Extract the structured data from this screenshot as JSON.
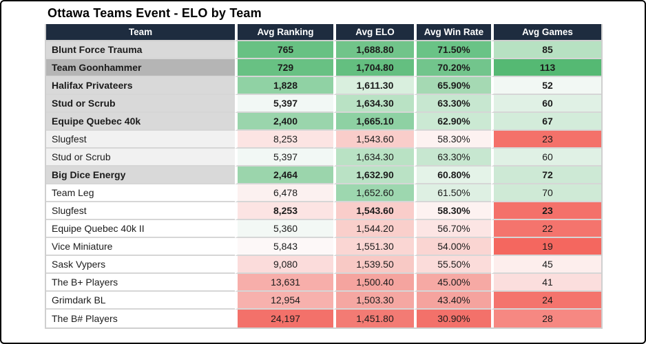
{
  "title": "Ottawa Teams Event - ELO by Team",
  "colors": {
    "header_bg": "#1e2c3f",
    "header_text": "#ffffff",
    "grid_line": "#d6d6d6",
    "outer_border": "#000000",
    "scale_green_strong": "#55b973",
    "scale_red_strong": "#f4675f"
  },
  "table": {
    "columns": [
      "Team",
      "Avg Ranking",
      "Avg ELO",
      "Avg Win Rate",
      "Avg Games"
    ],
    "rows": [
      {
        "team": "Blunt Force Trauma",
        "name_bold": true,
        "values_bold": true,
        "team_bg": "#d9d9d9",
        "cells": [
          {
            "text": "765",
            "bg": "#68c183"
          },
          {
            "text": "1,688.80",
            "bg": "#71c48a"
          },
          {
            "text": "71.50%",
            "bg": "#6ac386"
          },
          {
            "text": "85",
            "bg": "#b7e1c2"
          }
        ]
      },
      {
        "team": "Team Goonhammer",
        "name_bold": true,
        "values_bold": true,
        "team_bg": "#b5b5b5",
        "cells": [
          {
            "text": "729",
            "bg": "#68c183"
          },
          {
            "text": "1,704.80",
            "bg": "#64bf80"
          },
          {
            "text": "70.20%",
            "bg": "#72c58c"
          },
          {
            "text": "113",
            "bg": "#55b973"
          }
        ]
      },
      {
        "team": "Halifax Privateers",
        "name_bold": true,
        "values_bold": true,
        "team_bg": "#d9d9d9",
        "cells": [
          {
            "text": "1,828",
            "bg": "#90d2a4"
          },
          {
            "text": "1,611.30",
            "bg": "#d9efde"
          },
          {
            "text": "65.90%",
            "bg": "#a5d9b3"
          },
          {
            "text": "52",
            "bg": "#f2f8f4"
          }
        ]
      },
      {
        "team": "Stud or Scrub",
        "name_bold": true,
        "values_bold": true,
        "team_bg": "#d9d9d9",
        "cells": [
          {
            "text": "5,397",
            "bg": "#f2f8f5"
          },
          {
            "text": "1,634.30",
            "bg": "#b9e2c4"
          },
          {
            "text": "63.30%",
            "bg": "#c7e7d0"
          },
          {
            "text": "60",
            "bg": "#e0f1e5"
          }
        ]
      },
      {
        "team": "Equipe Quebec 40k",
        "name_bold": true,
        "values_bold": true,
        "team_bg": "#d9d9d9",
        "cells": [
          {
            "text": "2,400",
            "bg": "#9ad5ac"
          },
          {
            "text": "1,665.10",
            "bg": "#8ed1a3"
          },
          {
            "text": "62.90%",
            "bg": "#cbe9d3"
          },
          {
            "text": "67",
            "bg": "#d3ecda"
          }
        ]
      },
      {
        "team": "Slugfest",
        "name_bold": false,
        "values_bold": false,
        "team_bg": "#f1f1f1",
        "cells": [
          {
            "text": "8,253",
            "bg": "#fce4e3"
          },
          {
            "text": "1,543.60",
            "bg": "#f9cdca"
          },
          {
            "text": "58.30%",
            "bg": "#fdf2f1"
          },
          {
            "text": "23",
            "bg": "#f4716a"
          }
        ]
      },
      {
        "team": "Stud or Scrub",
        "name_bold": false,
        "values_bold": false,
        "team_bg": "#f1f1f1",
        "cells": [
          {
            "text": "5,397",
            "bg": "#f2f8f5"
          },
          {
            "text": "1,634.30",
            "bg": "#b9e2c4"
          },
          {
            "text": "63.30%",
            "bg": "#c7e7d0"
          },
          {
            "text": "60",
            "bg": "#e0f1e5"
          }
        ]
      },
      {
        "team": "Big Dice Energy",
        "name_bold": true,
        "values_bold": true,
        "team_bg": "#d9d9d9",
        "cells": [
          {
            "text": "2,464",
            "bg": "#9bd5ac"
          },
          {
            "text": "1,632.90",
            "bg": "#bae2c5"
          },
          {
            "text": "60.80%",
            "bg": "#e4f3e8"
          },
          {
            "text": "72",
            "bg": "#cde9d5"
          }
        ]
      },
      {
        "team": "Team Leg",
        "name_bold": false,
        "values_bold": false,
        "team_bg": "#ffffff",
        "cells": [
          {
            "text": "6,478",
            "bg": "#fcf1f0"
          },
          {
            "text": "1,652.60",
            "bg": "#9dd7af"
          },
          {
            "text": "61.50%",
            "bg": "#def0e3"
          },
          {
            "text": "70",
            "bg": "#cfead6"
          }
        ]
      },
      {
        "team": "Slugfest",
        "name_bold": false,
        "values_bold": true,
        "team_bg": "#ffffff",
        "cells": [
          {
            "text": "8,253",
            "bg": "#fce4e3"
          },
          {
            "text": "1,543.60",
            "bg": "#f9cdca"
          },
          {
            "text": "58.30%",
            "bg": "#fdf2f1"
          },
          {
            "text": "23",
            "bg": "#f4716a"
          }
        ]
      },
      {
        "team": "Equipe Quebec 40k II",
        "name_bold": false,
        "values_bold": false,
        "team_bg": "#ffffff",
        "cells": [
          {
            "text": "5,360",
            "bg": "#f3f8f5"
          },
          {
            "text": "1,544.20",
            "bg": "#f9cfcb"
          },
          {
            "text": "56.70%",
            "bg": "#fce5e4"
          },
          {
            "text": "22",
            "bg": "#f4746d"
          }
        ]
      },
      {
        "team": "Vice Miniature",
        "name_bold": false,
        "values_bold": false,
        "team_bg": "#ffffff",
        "cells": [
          {
            "text": "5,843",
            "bg": "#fdf8f8"
          },
          {
            "text": "1,551.30",
            "bg": "#fad6d3"
          },
          {
            "text": "54.00%",
            "bg": "#fad5d2"
          },
          {
            "text": "19",
            "bg": "#f4675f"
          }
        ]
      },
      {
        "team": "Sask Vypers",
        "name_bold": false,
        "values_bold": false,
        "team_bg": "#ffffff",
        "cells": [
          {
            "text": "9,080",
            "bg": "#fbdcdb"
          },
          {
            "text": "1,539.50",
            "bg": "#f8c9c5"
          },
          {
            "text": "55.50%",
            "bg": "#fbdcda"
          },
          {
            "text": "45",
            "bg": "#fdeeed"
          }
        ]
      },
      {
        "team": "The B+ Players",
        "name_bold": false,
        "values_bold": false,
        "team_bg": "#ffffff",
        "cells": [
          {
            "text": "13,631",
            "bg": "#f7aeaa"
          },
          {
            "text": "1,500.40",
            "bg": "#f5a49f"
          },
          {
            "text": "45.00%",
            "bg": "#f6a9a4"
          },
          {
            "text": "41",
            "bg": "#fbdedd"
          }
        ]
      },
      {
        "team": "Grimdark BL",
        "name_bold": false,
        "values_bold": false,
        "team_bg": "#ffffff",
        "cells": [
          {
            "text": "12,954",
            "bg": "#f7b1ad"
          },
          {
            "text": "1,503.30",
            "bg": "#f5a7a2"
          },
          {
            "text": "43.40%",
            "bg": "#f5a39e"
          },
          {
            "text": "24",
            "bg": "#f4746d"
          }
        ]
      },
      {
        "team": "The B# Players",
        "name_bold": false,
        "values_bold": false,
        "team_bg": "#ffffff",
        "cells": [
          {
            "text": "24,197",
            "bg": "#f3716a"
          },
          {
            "text": "1,451.80",
            "bg": "#f37b74"
          },
          {
            "text": "30.90%",
            "bg": "#f3716a"
          },
          {
            "text": "28",
            "bg": "#f68882"
          }
        ]
      }
    ]
  }
}
